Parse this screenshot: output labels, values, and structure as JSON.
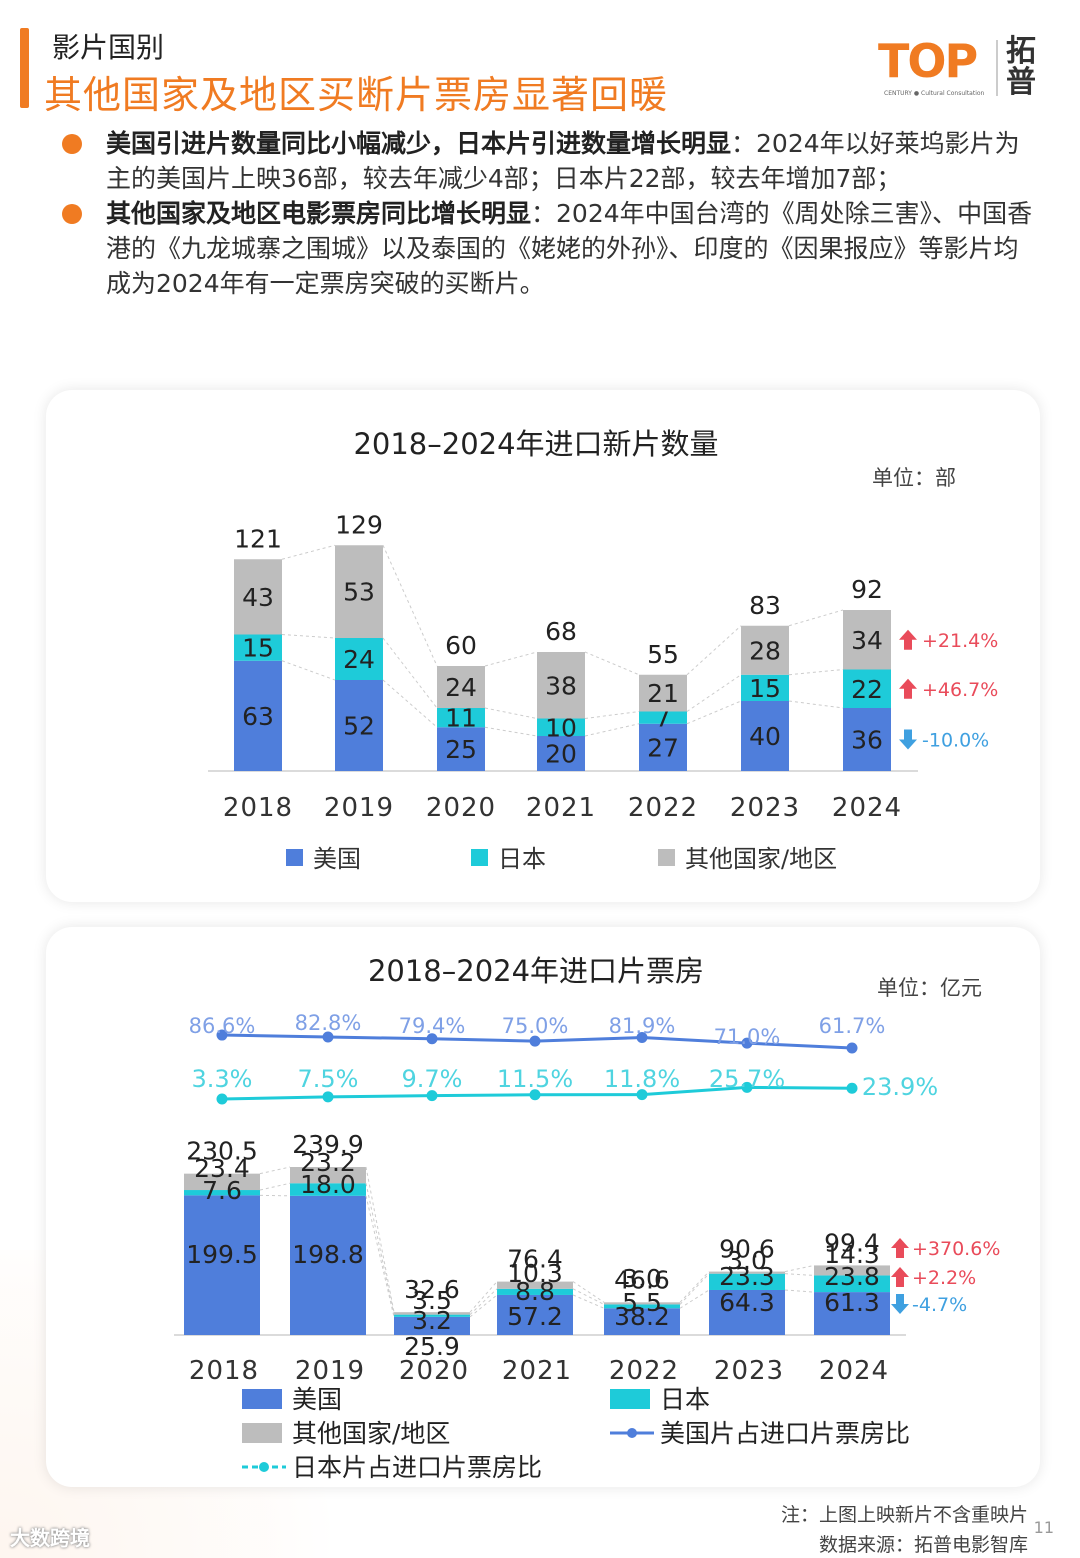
{
  "header": {
    "section_label": "影片国别",
    "title": "其他国家及地区买断片票房显著回暖"
  },
  "logo": {
    "text": "TOP",
    "sub": "CENTURY ● Cultural Consultation",
    "cn": "拓普"
  },
  "bullets": [
    {
      "bold": "美国引进片数量同比小幅减少，日本片引进数量增长明显",
      "text": "：2024年以好莱坞影片为主的美国片上映36部，较去年减少4部；日本片22部，较去年增加7部；"
    },
    {
      "bold": "其他国家及地区电影票房同比增长明显",
      "text": "：2024年中国台湾的《周处除三害》、中国香港的《九龙城寨之围城》以及泰国的《姥姥的外孙》、印度的《因果报应》等影片均成为2024年有一定票房突破的买断片。"
    }
  ],
  "colors": {
    "accent": "#F07B22",
    "usa": "#4F7EDB",
    "japan": "#1ECBD9",
    "other": "#BDBDBD",
    "up": "#E94B5A",
    "down": "#3FA0E0"
  },
  "chart_data": [
    {
      "type": "bar",
      "stacked": true,
      "title": "2018–2024年进口新片数量",
      "unit": "单位：部",
      "categories": [
        "2018",
        "2019",
        "2020",
        "2021",
        "2022",
        "2023",
        "2024"
      ],
      "series": [
        {
          "name": "美国",
          "values": [
            63,
            52,
            25,
            20,
            27,
            40,
            36
          ]
        },
        {
          "name": "日本",
          "values": [
            15,
            24,
            11,
            10,
            7,
            15,
            22
          ]
        },
        {
          "name": "其他国家/地区",
          "values": [
            43,
            53,
            24,
            38,
            21,
            28,
            34
          ]
        }
      ],
      "totals": [
        121,
        129,
        60,
        68,
        55,
        83,
        92
      ],
      "changes": [
        {
          "series": "其他国家/地区",
          "label": "+21.4%",
          "direction": "up"
        },
        {
          "series": "日本",
          "label": "+46.7%",
          "direction": "up"
        },
        {
          "series": "美国",
          "label": "-10.0%",
          "direction": "down"
        }
      ],
      "legend": [
        "美国",
        "日本",
        "其他国家/地区"
      ]
    },
    {
      "type": "bar",
      "stacked": true,
      "title": "2018–2024年进口片票房",
      "unit": "单位：亿元",
      "categories": [
        "2018",
        "2019",
        "2020",
        "2021",
        "2022",
        "2023",
        "2024"
      ],
      "series": [
        {
          "name": "美国",
          "values": [
            199.5,
            198.8,
            25.9,
            57.2,
            38.2,
            64.3,
            61.3
          ]
        },
        {
          "name": "日本",
          "values": [
            7.6,
            18.0,
            3.2,
            8.8,
            5.5,
            23.3,
            23.8
          ]
        },
        {
          "name": "其他国家/地区",
          "values": [
            23.4,
            23.2,
            3.5,
            10.3,
            3.0,
            3.0,
            14.3
          ]
        }
      ],
      "totals": [
        "230.5",
        "239.9",
        "32.6",
        "76.4",
        "46.6",
        "90.6",
        "99.4"
      ],
      "labels": {
        "usa": [
          "199.5",
          "198.8",
          "25.9",
          "57.2",
          "38.2",
          "64.3",
          "61.3"
        ],
        "japan": [
          "7.6",
          "18.0",
          "3.2",
          "8.8",
          "5.5",
          "23.3",
          "23.8"
        ],
        "other": [
          "23.4",
          "23.2",
          "3.5",
          "10.3",
          "3.0",
          "3.0",
          "14.3"
        ]
      },
      "lines": [
        {
          "name": "美国片占进口片票房比",
          "values": [
            86.6,
            82.8,
            79.4,
            75.0,
            81.9,
            71.0,
            61.7
          ],
          "labels": [
            "86.6%",
            "82.8%",
            "79.4%",
            "75.0%",
            "81.9%",
            "71.0%",
            "61.7%"
          ]
        },
        {
          "name": "日本片占进口片票房比",
          "values": [
            3.3,
            7.5,
            9.7,
            11.5,
            11.8,
            25.7,
            23.9
          ],
          "labels": [
            "3.3%",
            "7.5%",
            "9.7%",
            "11.5%",
            "11.8%",
            "25.7%",
            "23.9%"
          ]
        }
      ],
      "changes": [
        {
          "series": "其他国家/地区",
          "label": "+370.6%",
          "direction": "up"
        },
        {
          "series": "日本",
          "label": "+2.2%",
          "direction": "up"
        },
        {
          "series": "美国",
          "label": "-4.7%",
          "direction": "down"
        }
      ],
      "legend": [
        "美国",
        "日本",
        "其他国家/地区",
        "美国片占进口片票房比",
        "日本片占进口片票房比"
      ]
    }
  ],
  "footer": {
    "note": "注：上图上映新片不含重映片",
    "source": "数据来源：拓普电影智库",
    "page": "11",
    "watermark": "大数跨境"
  }
}
